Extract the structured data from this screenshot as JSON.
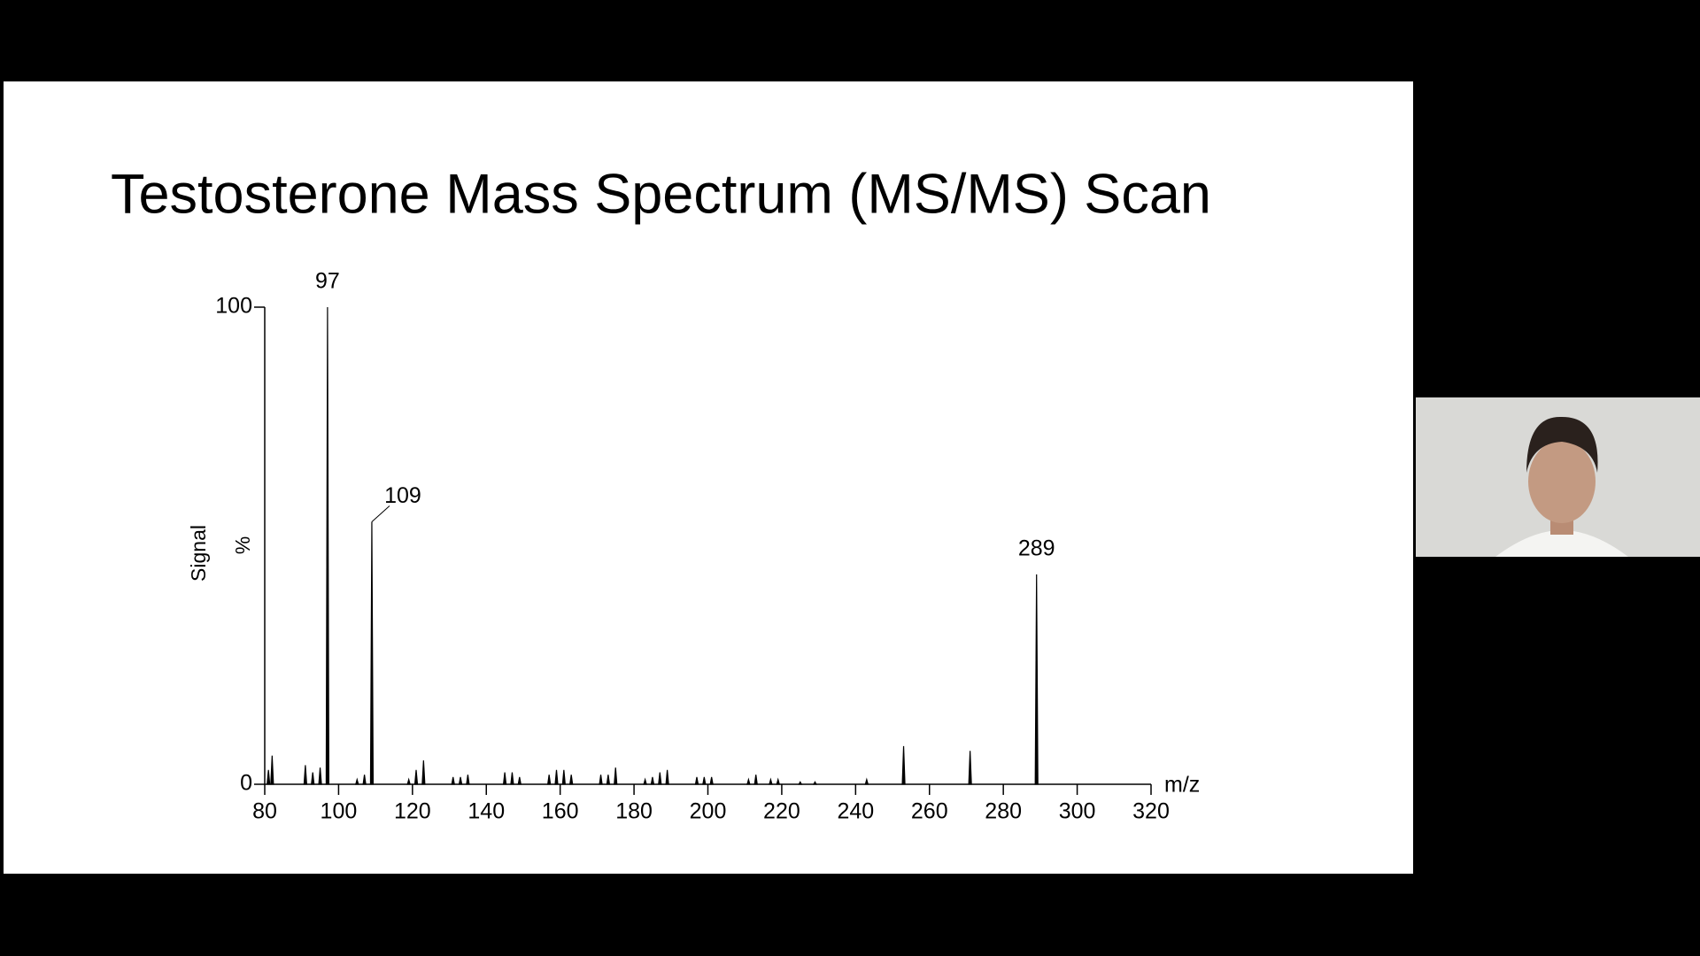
{
  "chart_data": {
    "type": "spectrum",
    "title": "Testosterone Mass Spectrum (MS/MS) Scan",
    "y_label": "Signal",
    "y_unit": "%",
    "x_label": "m/z",
    "annotations": [
      "97",
      "109",
      "289"
    ],
    "x": [
      81,
      82,
      91,
      93,
      95,
      97,
      105,
      107,
      109,
      119,
      121,
      123,
      131,
      133,
      135,
      145,
      147,
      149,
      157,
      159,
      161,
      163,
      171,
      173,
      175,
      183,
      185,
      187,
      189,
      197,
      199,
      201,
      211,
      213,
      217,
      219,
      225,
      229,
      243,
      253,
      271,
      289
    ],
    "values": [
      3,
      6,
      4,
      2.5,
      3.5,
      100,
      1,
      2,
      55,
      1,
      3,
      5,
      1.5,
      1.5,
      2,
      2.5,
      2.5,
      1.5,
      2,
      3,
      3,
      2,
      2,
      2,
      3.5,
      1,
      1.5,
      2.5,
      3,
      1.5,
      1.5,
      1.5,
      1,
      2,
      1,
      1,
      0.5,
      0.5,
      1,
      8,
      7,
      44
    ],
    "color": "#000000",
    "xlim": [
      80,
      320
    ],
    "xticks": [
      80,
      100,
      120,
      140,
      160,
      180,
      200,
      220,
      240,
      260,
      280,
      300,
      320
    ],
    "ylim": [
      0,
      100
    ],
    "yticks": [
      0,
      100
    ]
  }
}
